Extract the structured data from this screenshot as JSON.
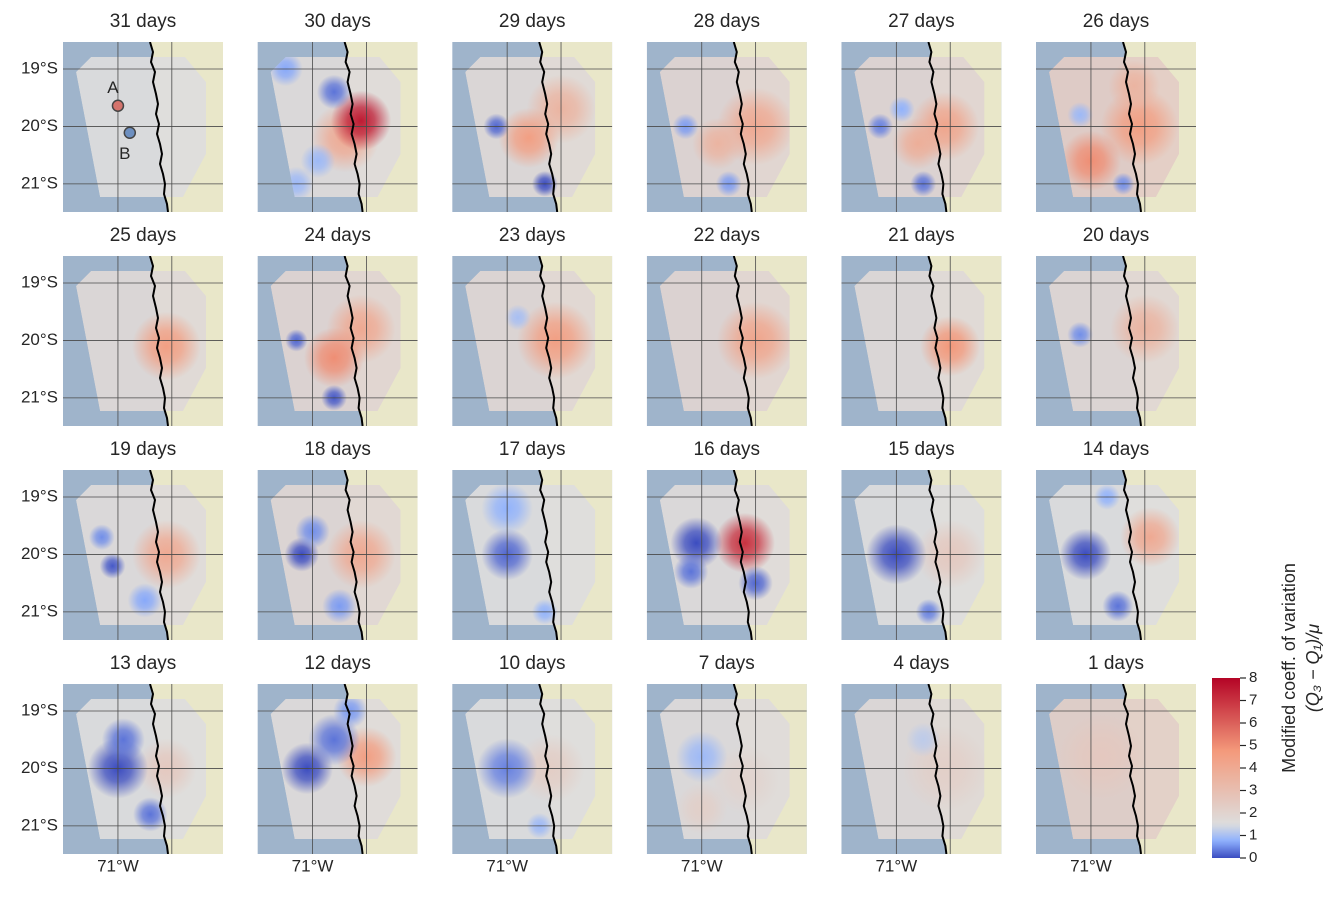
{
  "map": {
    "lonlim": [
      -72.02,
      -69.05
    ],
    "latlim": [
      -21.49,
      -18.53
    ],
    "lat_ticks": [
      {
        "value": -19,
        "label": "19°S"
      },
      {
        "value": -20,
        "label": "20°S"
      },
      {
        "value": -21,
        "label": "21°S"
      }
    ],
    "lon_ticks": [
      {
        "value": -71,
        "label": "71°W"
      },
      {
        "value": -70,
        "label": null
      }
    ],
    "ocean_color": "#9fb4cb",
    "land_color": "#e9e7c9"
  },
  "panels": [
    {
      "title": "31 days",
      "background": 1.5,
      "blobs": [],
      "sites": [
        {
          "label": "A",
          "lat": -19.64,
          "lon": -71.0,
          "color": "#d4736c"
        },
        {
          "label": "B",
          "lat": -20.11,
          "lon": -70.78,
          "color": "#6d8fc0"
        }
      ]
    },
    {
      "title": "30 days",
      "background": 1.6,
      "blobs": [
        {
          "lat": -20.2,
          "lon": -70.4,
          "value": 4,
          "radius": 0.4
        },
        {
          "lat": -19.9,
          "lon": -70.1,
          "value": 7.5,
          "radius": 0.35
        },
        {
          "lat": -19.4,
          "lon": -70.6,
          "value": 0.3,
          "radius": 0.2
        },
        {
          "lat": -19.0,
          "lon": -71.5,
          "value": 0.7,
          "radius": 0.2
        },
        {
          "lat": -20.6,
          "lon": -70.9,
          "value": 0.9,
          "radius": 0.2
        },
        {
          "lat": -21.0,
          "lon": -71.3,
          "value": 0.9,
          "radius": 0.2
        }
      ]
    },
    {
      "title": "29 days",
      "background": 1.7,
      "blobs": [
        {
          "lat": -19.7,
          "lon": -70.0,
          "value": 3.5,
          "radius": 0.4
        },
        {
          "lat": -20.2,
          "lon": -70.6,
          "value": 4.5,
          "radius": 0.35
        },
        {
          "lat": -20.0,
          "lon": -71.2,
          "value": 0.2,
          "radius": 0.15
        },
        {
          "lat": -21.0,
          "lon": -70.3,
          "value": 0,
          "radius": 0.15
        }
      ]
    },
    {
      "title": "28 days",
      "background": 1.9,
      "blobs": [
        {
          "lat": -20.0,
          "lon": -70.0,
          "value": 4,
          "radius": 0.45
        },
        {
          "lat": -20.3,
          "lon": -70.7,
          "value": 3.5,
          "radius": 0.3
        },
        {
          "lat": -20.0,
          "lon": -71.3,
          "value": 0.6,
          "radius": 0.15
        },
        {
          "lat": -21.0,
          "lon": -70.5,
          "value": 0.6,
          "radius": 0.15
        }
      ]
    },
    {
      "title": "27 days",
      "background": 1.9,
      "blobs": [
        {
          "lat": -20.0,
          "lon": -70.1,
          "value": 4.2,
          "radius": 0.4
        },
        {
          "lat": -20.3,
          "lon": -70.6,
          "value": 3.8,
          "radius": 0.3
        },
        {
          "lat": -20.0,
          "lon": -71.3,
          "value": 0.4,
          "radius": 0.15
        },
        {
          "lat": -19.7,
          "lon": -70.9,
          "value": 0.8,
          "radius": 0.15
        },
        {
          "lat": -21.0,
          "lon": -70.5,
          "value": 0.3,
          "radius": 0.15
        }
      ]
    },
    {
      "title": "26 days",
      "background": 2.3,
      "blobs": [
        {
          "lat": -20.0,
          "lon": -70.1,
          "value": 4.5,
          "radius": 0.45
        },
        {
          "lat": -20.6,
          "lon": -71.0,
          "value": 5,
          "radius": 0.35
        },
        {
          "lat": -19.3,
          "lon": -70.2,
          "value": 3.5,
          "radius": 0.3
        },
        {
          "lat": -19.8,
          "lon": -71.2,
          "value": 0.9,
          "radius": 0.15
        },
        {
          "lat": -21.0,
          "lon": -70.4,
          "value": 0.5,
          "radius": 0.13
        }
      ]
    },
    {
      "title": "25 days",
      "background": 1.7,
      "blobs": [
        {
          "lat": -20.1,
          "lon": -70.1,
          "value": 4.5,
          "radius": 0.4
        }
      ]
    },
    {
      "title": "24 days",
      "background": 1.9,
      "blobs": [
        {
          "lat": -19.8,
          "lon": -70.1,
          "value": 4,
          "radius": 0.4
        },
        {
          "lat": -20.3,
          "lon": -70.6,
          "value": 5,
          "radius": 0.35
        },
        {
          "lat": -20.0,
          "lon": -71.3,
          "value": 0.2,
          "radius": 0.13
        },
        {
          "lat": -21.0,
          "lon": -70.6,
          "value": 0.1,
          "radius": 0.15
        }
      ]
    },
    {
      "title": "23 days",
      "background": 1.8,
      "blobs": [
        {
          "lat": -20.0,
          "lon": -70.1,
          "value": 4.5,
          "radius": 0.45
        },
        {
          "lat": -19.6,
          "lon": -70.8,
          "value": 1,
          "radius": 0.15
        }
      ]
    },
    {
      "title": "22 days",
      "background": 1.9,
      "blobs": [
        {
          "lat": -20.0,
          "lon": -70.0,
          "value": 4.2,
          "radius": 0.45
        }
      ]
    },
    {
      "title": "21 days",
      "background": 1.7,
      "blobs": [
        {
          "lat": -20.1,
          "lon": -70.0,
          "value": 4.8,
          "radius": 0.35
        }
      ]
    },
    {
      "title": "20 days",
      "background": 1.8,
      "blobs": [
        {
          "lat": -19.8,
          "lon": -70.0,
          "value": 3.5,
          "radius": 0.4
        },
        {
          "lat": -19.9,
          "lon": -71.2,
          "value": 0.5,
          "radius": 0.15
        }
      ]
    },
    {
      "title": "19 days",
      "background": 1.6,
      "blobs": [
        {
          "lat": -20.0,
          "lon": -70.1,
          "value": 4,
          "radius": 0.4
        },
        {
          "lat": -20.2,
          "lon": -71.1,
          "value": 0.1,
          "radius": 0.15
        },
        {
          "lat": -19.7,
          "lon": -71.3,
          "value": 0.5,
          "radius": 0.15
        },
        {
          "lat": -20.8,
          "lon": -70.5,
          "value": 0.7,
          "radius": 0.2
        }
      ]
    },
    {
      "title": "18 days",
      "background": 1.8,
      "blobs": [
        {
          "lat": -20.0,
          "lon": -70.1,
          "value": 4,
          "radius": 0.4
        },
        {
          "lat": -20.0,
          "lon": -71.2,
          "value": 0,
          "radius": 0.2
        },
        {
          "lat": -19.6,
          "lon": -71.0,
          "value": 0.5,
          "radius": 0.2
        },
        {
          "lat": -20.9,
          "lon": -70.5,
          "value": 0.6,
          "radius": 0.2
        }
      ]
    },
    {
      "title": "17 days",
      "background": 1.5,
      "blobs": [
        {
          "lat": -20.0,
          "lon": -71.0,
          "value": 0.2,
          "radius": 0.3
        },
        {
          "lat": -19.2,
          "lon": -71.0,
          "value": 0.8,
          "radius": 0.3
        },
        {
          "lat": -21.0,
          "lon": -70.3,
          "value": 0.8,
          "radius": 0.15
        }
      ]
    },
    {
      "title": "16 days",
      "background": 1.6,
      "blobs": [
        {
          "lat": -19.8,
          "lon": -70.2,
          "value": 7,
          "radius": 0.35
        },
        {
          "lat": -19.8,
          "lon": -71.1,
          "value": 0,
          "radius": 0.3
        },
        {
          "lat": -20.3,
          "lon": -71.2,
          "value": 0.3,
          "radius": 0.2
        },
        {
          "lat": -20.5,
          "lon": -70.0,
          "value": 0.2,
          "radius": 0.2
        }
      ]
    },
    {
      "title": "15 days",
      "background": 1.5,
      "blobs": [
        {
          "lat": -20.0,
          "lon": -70.0,
          "value": 2.5,
          "radius": 0.4
        },
        {
          "lat": -20.0,
          "lon": -71.0,
          "value": 0,
          "radius": 0.35
        },
        {
          "lat": -21.0,
          "lon": -70.4,
          "value": 0.4,
          "radius": 0.15
        }
      ]
    },
    {
      "title": "14 days",
      "background": 1.5,
      "blobs": [
        {
          "lat": -19.7,
          "lon": -69.9,
          "value": 4,
          "radius": 0.35
        },
        {
          "lat": -20.0,
          "lon": -71.1,
          "value": 0,
          "radius": 0.3
        },
        {
          "lat": -20.9,
          "lon": -70.5,
          "value": 0.3,
          "radius": 0.18
        },
        {
          "lat": -19.0,
          "lon": -70.7,
          "value": 0.8,
          "radius": 0.15
        }
      ]
    },
    {
      "title": "13 days",
      "background": 1.5,
      "blobs": [
        {
          "lat": -20.0,
          "lon": -70.1,
          "value": 2.5,
          "radius": 0.35
        },
        {
          "lat": -20.0,
          "lon": -71.0,
          "value": 0,
          "radius": 0.35
        },
        {
          "lat": -19.5,
          "lon": -70.9,
          "value": 0.3,
          "radius": 0.25
        },
        {
          "lat": -20.8,
          "lon": -70.4,
          "value": 0.3,
          "radius": 0.2
        }
      ]
    },
    {
      "title": "12 days",
      "background": 1.6,
      "blobs": [
        {
          "lat": -19.8,
          "lon": -70.0,
          "value": 4.5,
          "radius": 0.35
        },
        {
          "lat": -20.0,
          "lon": -71.1,
          "value": 0,
          "radius": 0.3
        },
        {
          "lat": -19.5,
          "lon": -70.6,
          "value": 0.3,
          "radius": 0.3
        },
        {
          "lat": -19.0,
          "lon": -70.3,
          "value": 0.6,
          "radius": 0.2
        }
      ]
    },
    {
      "title": "10 days",
      "background": 1.5,
      "blobs": [
        {
          "lat": -20.0,
          "lon": -70.2,
          "value": 2.3,
          "radius": 0.4
        },
        {
          "lat": -20.0,
          "lon": -71.0,
          "value": 0.4,
          "radius": 0.35
        },
        {
          "lat": -21.0,
          "lon": -70.4,
          "value": 0.9,
          "radius": 0.15
        }
      ]
    },
    {
      "title": "7 days",
      "background": 1.6,
      "blobs": [
        {
          "lat": -20.2,
          "lon": -70.2,
          "value": 2,
          "radius": 0.4
        },
        {
          "lat": -20.7,
          "lon": -71.0,
          "value": 2.2,
          "radius": 0.3
        },
        {
          "lat": -19.8,
          "lon": -71.0,
          "value": 0.9,
          "radius": 0.3
        }
      ]
    },
    {
      "title": "4 days",
      "background": 1.7,
      "blobs": [
        {
          "lat": -20.0,
          "lon": -70.1,
          "value": 2.2,
          "radius": 0.5
        },
        {
          "lat": -19.5,
          "lon": -70.5,
          "value": 1.2,
          "radius": 0.2
        }
      ]
    },
    {
      "title": "1 days",
      "background": 2.2,
      "blobs": [
        {
          "lat": -19.8,
          "lon": -70.8,
          "value": 2.5,
          "radius": 0.5
        }
      ]
    }
  ],
  "colorbar": {
    "label": "Modified coeff. of variation",
    "sublabel": "(Q₃ − Q₁)/μ",
    "lim": [
      0,
      8
    ],
    "vcenter": 1.5,
    "ticks": [
      0,
      1,
      2,
      3,
      4,
      5,
      6,
      7,
      8
    ],
    "colors": [
      "#3b4cc0",
      "#8db0fe",
      "#dddddd",
      "#f49a7b",
      "#b40426"
    ]
  }
}
